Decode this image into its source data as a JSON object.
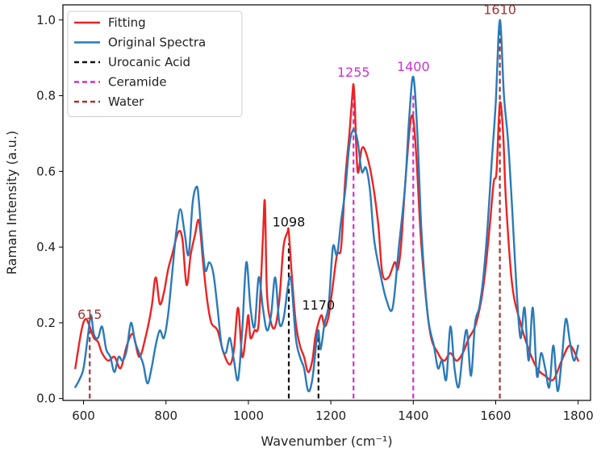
{
  "chart_data": {
    "type": "line",
    "xlabel": "Wavenumber (cm⁻¹)",
    "ylabel": "Raman Intensity (a.u.)",
    "xlim": [
      550,
      1830
    ],
    "ylim": [
      -0.005,
      1.04
    ],
    "xticks": [
      600,
      800,
      1000,
      1200,
      1400,
      1600,
      1800
    ],
    "yticks": [
      0.0,
      0.2,
      0.4,
      0.6,
      0.8,
      1.0
    ],
    "ytick_labels": [
      "0.0",
      "0.2",
      "0.4",
      "0.6",
      "0.8",
      "1.0"
    ],
    "grid": false,
    "legend_position": "top-left",
    "series": [
      {
        "name": "Fitting",
        "color": "#ee2222",
        "x": [
          580,
          595,
          605,
          615,
          625,
          635,
          645,
          660,
          675,
          690,
          705,
          720,
          735,
          750,
          765,
          775,
          785,
          795,
          805,
          815,
          830,
          840,
          850,
          860,
          870,
          880,
          890,
          900,
          910,
          925,
          940,
          955,
          965,
          975,
          985,
          995,
          1000,
          1005,
          1015,
          1025,
          1035,
          1040,
          1045,
          1055,
          1065,
          1075,
          1085,
          1095,
          1098,
          1105,
          1115,
          1125,
          1135,
          1145,
          1155,
          1162,
          1170,
          1178,
          1185,
          1195,
          1205,
          1215,
          1225,
          1235,
          1245,
          1252,
          1255,
          1258,
          1265,
          1275,
          1285,
          1300,
          1315,
          1325,
          1340,
          1355,
          1362,
          1370,
          1380,
          1392,
          1400,
          1408,
          1420,
          1440,
          1460,
          1475,
          1490,
          1505,
          1520,
          1535,
          1550,
          1565,
          1575,
          1585,
          1595,
          1602,
          1610,
          1618,
          1625,
          1640,
          1660,
          1680,
          1700,
          1720,
          1740,
          1760,
          1780,
          1800
        ],
        "y": [
          0.08,
          0.18,
          0.21,
          0.19,
          0.16,
          0.15,
          0.12,
          0.1,
          0.11,
          0.08,
          0.14,
          0.17,
          0.11,
          0.16,
          0.24,
          0.32,
          0.25,
          0.28,
          0.34,
          0.38,
          0.44,
          0.42,
          0.3,
          0.38,
          0.43,
          0.47,
          0.36,
          0.26,
          0.2,
          0.18,
          0.12,
          0.09,
          0.13,
          0.24,
          0.11,
          0.18,
          0.22,
          0.16,
          0.18,
          0.2,
          0.42,
          0.52,
          0.28,
          0.2,
          0.19,
          0.26,
          0.4,
          0.44,
          0.44,
          0.33,
          0.2,
          0.14,
          0.11,
          0.07,
          0.1,
          0.16,
          0.2,
          0.22,
          0.19,
          0.22,
          0.3,
          0.38,
          0.4,
          0.58,
          0.7,
          0.8,
          0.83,
          0.78,
          0.6,
          0.66,
          0.65,
          0.58,
          0.46,
          0.33,
          0.32,
          0.36,
          0.34,
          0.4,
          0.56,
          0.72,
          0.74,
          0.63,
          0.4,
          0.18,
          0.12,
          0.1,
          0.12,
          0.1,
          0.12,
          0.16,
          0.19,
          0.26,
          0.34,
          0.45,
          0.57,
          0.6,
          0.78,
          0.7,
          0.52,
          0.3,
          0.2,
          0.13,
          0.08,
          0.06,
          0.05,
          0.1,
          0.14,
          0.1
        ]
      },
      {
        "name": "Original Spectra",
        "color": "#2a7ab9",
        "x": [
          580,
          590,
          600,
          610,
          618,
          625,
          635,
          645,
          655,
          665,
          675,
          685,
          695,
          705,
          715,
          725,
          735,
          745,
          755,
          765,
          775,
          785,
          795,
          805,
          815,
          825,
          835,
          845,
          855,
          865,
          875,
          880,
          885,
          895,
          905,
          915,
          925,
          935,
          945,
          955,
          965,
          975,
          985,
          995,
          1005,
          1015,
          1025,
          1035,
          1045,
          1055,
          1065,
          1075,
          1085,
          1095,
          1100,
          1105,
          1115,
          1125,
          1135,
          1145,
          1155,
          1165,
          1170,
          1175,
          1185,
          1195,
          1205,
          1215,
          1225,
          1235,
          1245,
          1255,
          1265,
          1275,
          1285,
          1295,
          1305,
          1320,
          1335,
          1350,
          1365,
          1380,
          1390,
          1400,
          1410,
          1420,
          1435,
          1450,
          1460,
          1470,
          1480,
          1490,
          1500,
          1510,
          1520,
          1530,
          1540,
          1550,
          1560,
          1570,
          1580,
          1590,
          1600,
          1610,
          1620,
          1630,
          1640,
          1650,
          1660,
          1670,
          1680,
          1690,
          1700,
          1710,
          1720,
          1730,
          1740,
          1750,
          1760,
          1770,
          1780,
          1790,
          1800
        ],
        "y": [
          0.03,
          0.05,
          0.08,
          0.16,
          0.22,
          0.17,
          0.16,
          0.19,
          0.13,
          0.11,
          0.07,
          0.11,
          0.1,
          0.13,
          0.2,
          0.15,
          0.12,
          0.09,
          0.04,
          0.08,
          0.14,
          0.18,
          0.16,
          0.22,
          0.33,
          0.44,
          0.5,
          0.44,
          0.38,
          0.52,
          0.56,
          0.52,
          0.45,
          0.34,
          0.36,
          0.33,
          0.24,
          0.14,
          0.12,
          0.16,
          0.1,
          0.05,
          0.18,
          0.36,
          0.24,
          0.19,
          0.32,
          0.24,
          0.18,
          0.22,
          0.32,
          0.2,
          0.21,
          0.29,
          0.32,
          0.3,
          0.16,
          0.11,
          0.08,
          0.02,
          0.05,
          0.15,
          0.18,
          0.13,
          0.2,
          0.25,
          0.4,
          0.38,
          0.47,
          0.55,
          0.67,
          0.71,
          0.68,
          0.6,
          0.61,
          0.55,
          0.42,
          0.33,
          0.26,
          0.24,
          0.4,
          0.56,
          0.74,
          0.85,
          0.7,
          0.44,
          0.22,
          0.14,
          0.08,
          0.1,
          0.05,
          0.19,
          0.08,
          0.03,
          0.12,
          0.18,
          0.06,
          0.2,
          0.24,
          0.32,
          0.45,
          0.62,
          0.78,
          1.0,
          0.8,
          0.68,
          0.5,
          0.3,
          0.16,
          0.24,
          0.1,
          0.24,
          0.06,
          0.12,
          0.08,
          0.03,
          0.14,
          0.02,
          0.1,
          0.21,
          0.15,
          0.1,
          0.14
        ]
      },
      {
        "name": "Urocanic Acid",
        "color": "#111111",
        "dashed": true,
        "lines": [
          {
            "x": 1098,
            "y": 0.41
          },
          {
            "x": 1170,
            "y": 0.18
          }
        ]
      },
      {
        "name": "Ceramide",
        "color": "#cc33cc",
        "dashed": true,
        "lines": [
          {
            "x": 1255,
            "y": 0.83
          },
          {
            "x": 1400,
            "y": 0.8
          }
        ]
      },
      {
        "name": "Water",
        "color": "#a83232",
        "dashed": true,
        "lines": [
          {
            "x": 615,
            "y": 0.18
          },
          {
            "x": 1610,
            "y": 0.99
          }
        ]
      }
    ],
    "annotations": [
      {
        "text": "615",
        "x": 615,
        "y": 0.21,
        "color": "#a83232"
      },
      {
        "text": "1098",
        "x": 1098,
        "y": 0.455,
        "color": "#111111"
      },
      {
        "text": "1170",
        "x": 1170,
        "y": 0.235,
        "color": "#111111"
      },
      {
        "text": "1255",
        "x": 1255,
        "y": 0.85,
        "color": "#cc33cc"
      },
      {
        "text": "1400",
        "x": 1400,
        "y": 0.865,
        "color": "#cc33cc"
      },
      {
        "text": "1610",
        "x": 1610,
        "y": 1.015,
        "color": "#a83232"
      }
    ]
  }
}
